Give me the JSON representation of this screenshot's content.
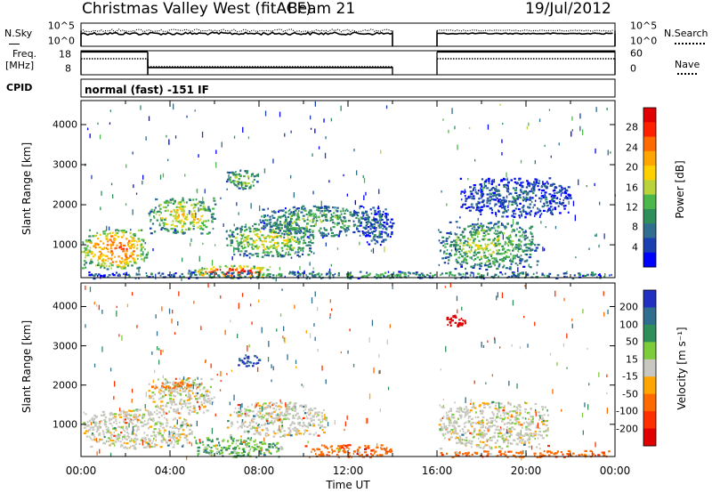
{
  "header": {
    "site": "Christmas Valley West (fitACF)",
    "beam": "Beam 21",
    "date": "19/Jul/2012"
  },
  "params": {
    "nsky_label": "N.Sky",
    "nsearch_label": "N.Search",
    "freq_label_1": "Freq.",
    "freq_label_2": "[MHz]",
    "nave_label": "Nave",
    "cpid_label": "CPID",
    "mode_text": "normal (fast) -151 IF",
    "noise_ticks": [
      "10^5",
      "10^0"
    ],
    "freq_ticks": [
      "18",
      "8"
    ],
    "nave_ticks": [
      "60",
      "0"
    ]
  },
  "chart_data": [
    {
      "type": "heatmap",
      "panel": "power",
      "ylabel": "Slant Range [km]",
      "xlabel": "",
      "colorbar_label": "Power [dB]",
      "colorbar_ticks": [
        "28",
        "24",
        "20",
        "16",
        "12",
        "8",
        "4"
      ],
      "colorbar_colors": [
        "#0000ff",
        "#1a3fb0",
        "#2f6e8e",
        "#2f8f5a",
        "#4cb84c",
        "#b8d43a",
        "#ffd000",
        "#ffa500",
        "#ff6a00",
        "#ff2000",
        "#e00000"
      ],
      "ytick_labels": [
        "4000",
        "3000",
        "2000",
        "1000"
      ],
      "yticks": [
        4000,
        3000,
        2000,
        1000
      ],
      "ylim": [
        180,
        4600
      ],
      "xlim": [
        0,
        24
      ],
      "data_gap_hours": [
        14.0,
        16.0
      ],
      "echo_regions": [
        {
          "t0": 0.0,
          "t1": 3.0,
          "r0": 400,
          "r1": 1400,
          "db": 24
        },
        {
          "t0": 5.0,
          "t1": 8.5,
          "r0": 180,
          "r1": 500,
          "db": 28
        },
        {
          "t0": 3.0,
          "t1": 6.0,
          "r0": 1300,
          "r1": 2200,
          "db": 18
        },
        {
          "t0": 6.5,
          "t1": 10.5,
          "r0": 700,
          "r1": 1600,
          "db": 16
        },
        {
          "t0": 6.5,
          "t1": 8.0,
          "r0": 2400,
          "r1": 2900,
          "db": 14
        },
        {
          "t0": 8.0,
          "t1": 13.0,
          "r0": 1200,
          "r1": 2000,
          "db": 12
        },
        {
          "t0": 12.5,
          "t1": 14.0,
          "r0": 1000,
          "r1": 2000,
          "db": 6
        },
        {
          "t0": 16.0,
          "t1": 20.5,
          "r0": 400,
          "r1": 1600,
          "db": 14
        },
        {
          "t0": 17.0,
          "t1": 22.0,
          "r0": 1700,
          "r1": 2700,
          "db": 6
        },
        {
          "t0": 0.0,
          "t1": 24.0,
          "r0": 180,
          "r1": 350,
          "db": 10
        }
      ]
    },
    {
      "type": "heatmap",
      "panel": "velocity",
      "ylabel": "Slant Range [km]",
      "xlabel": "Time UT",
      "colorbar_label": "Velocity [m s⁻¹]",
      "colorbar_ticks": [
        "200",
        "100",
        "50",
        "15",
        "-15",
        "-50",
        "-100",
        "-200"
      ],
      "colorbar_colors": [
        "#2030c0",
        "#2f6e8e",
        "#2f8f5a",
        "#7ccc3c",
        "#c8c8c0",
        "#ffa500",
        "#ff6a00",
        "#ff3000",
        "#e00000"
      ],
      "ytick_labels": [
        "4000",
        "3000",
        "2000",
        "1000"
      ],
      "yticks": [
        4000,
        3000,
        2000,
        1000
      ],
      "ylim": [
        180,
        4600
      ],
      "xlim": [
        0,
        24
      ],
      "xtick_labels": [
        "00:00",
        "04:00",
        "08:00",
        "12:00",
        "16:00",
        "20:00",
        "00:00"
      ],
      "xticks": [
        0,
        4,
        8,
        12,
        16,
        20,
        24
      ],
      "data_gap_hours": [
        14.0,
        16.0
      ],
      "echo_regions": [
        {
          "t0": 0.0,
          "t1": 5.0,
          "r0": 400,
          "r1": 1400,
          "v": 0
        },
        {
          "t0": 5.0,
          "t1": 9.0,
          "r0": 180,
          "r1": 700,
          "v": 30
        },
        {
          "t0": 3.0,
          "t1": 6.0,
          "r0": 1300,
          "r1": 2200,
          "v": 0
        },
        {
          "t0": 3.0,
          "t1": 5.0,
          "r0": 1900,
          "r1": 2100,
          "v": -50
        },
        {
          "t0": 6.5,
          "t1": 11.0,
          "r0": 700,
          "r1": 1600,
          "v": 0
        },
        {
          "t0": 7.0,
          "t1": 8.0,
          "r0": 2500,
          "r1": 2800,
          "v": 150
        },
        {
          "t0": 10.0,
          "t1": 14.0,
          "r0": 180,
          "r1": 500,
          "v": -60
        },
        {
          "t0": 16.0,
          "t1": 21.0,
          "r0": 400,
          "r1": 1600,
          "v": 0
        },
        {
          "t0": 16.0,
          "t1": 24.0,
          "r0": 180,
          "r1": 350,
          "v": -60
        },
        {
          "t0": 16.3,
          "t1": 17.3,
          "r0": 3500,
          "r1": 3800,
          "v": -200
        }
      ]
    },
    {
      "type": "line",
      "panel": "noise",
      "series": [
        {
          "name": "N.Sky",
          "style": "solid",
          "level": 0.55
        },
        {
          "name": "N.Search",
          "style": "dotted",
          "level": 0.68
        }
      ]
    },
    {
      "type": "line",
      "panel": "freq_nave",
      "series": [
        {
          "name": "Freq.",
          "style": "solid",
          "segments": [
            {
              "t0": 0.0,
              "t1": 3.0,
              "mhz": 17.5
            },
            {
              "t0": 3.0,
              "t1": 14.0,
              "mhz": 11.0
            },
            {
              "t0": 16.0,
              "t1": 24.0,
              "mhz": 17.5
            }
          ]
        },
        {
          "name": "Nave",
          "style": "dotted",
          "segments": [
            {
              "t0": 0.0,
              "t1": 3.0,
              "nave": 40
            },
            {
              "t0": 3.0,
              "t1": 14.0,
              "nave": 20
            },
            {
              "t0": 16.0,
              "t1": 24.0,
              "nave": 40
            }
          ]
        }
      ]
    }
  ]
}
